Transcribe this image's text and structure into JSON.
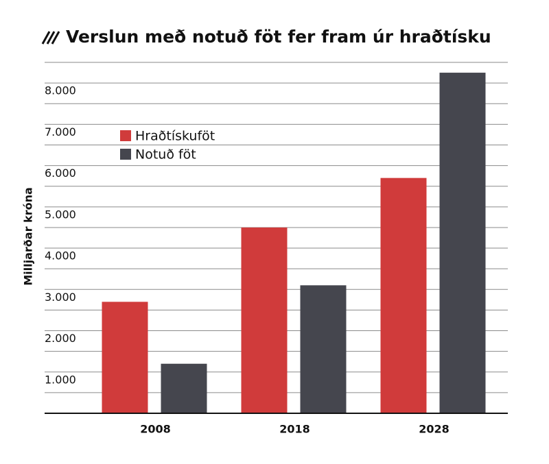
{
  "chart_data": {
    "type": "bar",
    "title": "Verslun með notuð föt fer fram úr hraðtísku",
    "ylabel": "Milljarðar króna",
    "categories": [
      "2008",
      "2018",
      "2028"
    ],
    "series": [
      {
        "name": "Hraðtískuföt",
        "color": "#d03b3b",
        "values": [
          2700,
          4500,
          5700
        ]
      },
      {
        "name": "Notuð föt",
        "color": "#45464e",
        "values": [
          1200,
          3100,
          8250
        ]
      }
    ],
    "ylim": [
      0,
      8500
    ],
    "yticks": [
      {
        "value": 1000,
        "label": "1.000"
      },
      {
        "value": 2000,
        "label": "2.000"
      },
      {
        "value": 3000,
        "label": "3.000"
      },
      {
        "value": 4000,
        "label": "4.000"
      },
      {
        "value": 5000,
        "label": "5.000"
      },
      {
        "value": 6000,
        "label": "6.000"
      },
      {
        "value": 7000,
        "label": "7.000"
      },
      {
        "value": 8000,
        "label": "8.000"
      }
    ],
    "yminorticks": [
      500,
      1500,
      2500,
      3500,
      4500,
      5500,
      6500,
      7500,
      8500
    ],
    "grid": true,
    "legend": "upper left"
  }
}
